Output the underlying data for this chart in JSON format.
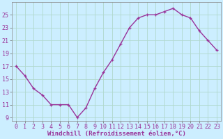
{
  "x": [
    0,
    1,
    2,
    3,
    4,
    5,
    6,
    7,
    8,
    9,
    10,
    11,
    12,
    13,
    14,
    15,
    16,
    17,
    18,
    19,
    20,
    21,
    22,
    23
  ],
  "y": [
    17,
    15.5,
    13.5,
    12.5,
    11,
    11,
    11,
    9,
    10.5,
    13.5,
    16,
    18,
    20.5,
    23,
    24.5,
    25,
    25,
    25.5,
    26,
    25,
    24.5,
    22.5,
    21,
    19.5
  ],
  "line_color": "#993399",
  "marker": "+",
  "bg_color": "#cceeff",
  "grid_color": "#aaddcc",
  "xlabel": "Windchill (Refroidissement éolien,°C)",
  "ylim": [
    8.5,
    27
  ],
  "yticks": [
    9,
    11,
    13,
    15,
    17,
    19,
    21,
    23,
    25
  ],
  "xticks": [
    0,
    1,
    2,
    3,
    4,
    5,
    6,
    7,
    8,
    9,
    10,
    11,
    12,
    13,
    14,
    15,
    16,
    17,
    18,
    19,
    20,
    21,
    22,
    23
  ],
  "xlabel_fontsize": 6.5,
  "tick_fontsize": 6,
  "line_width": 1.0,
  "marker_size": 3.5,
  "xlim": [
    -0.5,
    23.5
  ]
}
